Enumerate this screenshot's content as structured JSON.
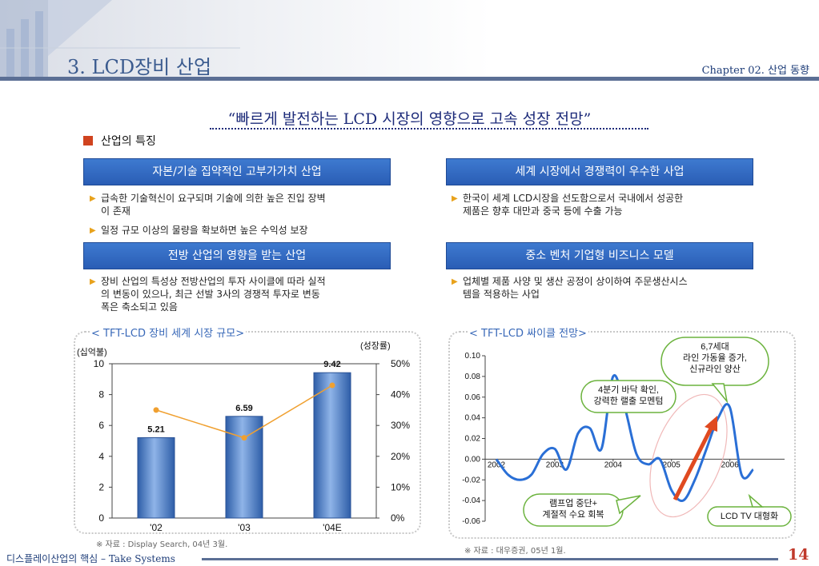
{
  "header": {
    "title": "3. LCD장비 산업",
    "chapter": "Chapter 02. 산업 동향"
  },
  "headline": "“빠르게 발전하는 LCD 시장의 영향으로 고속 성장 전망”",
  "section": {
    "label": "산업의 특징"
  },
  "features": [
    {
      "title": "자본/기술 집약적인 고부가가치 산업",
      "bullets": [
        "급속한 기술혁신이 요구되며 기술에 의한 높은 진입 장벽",
        "이 존재",
        "일정 규모 이상의 물량을 확보하면 높은 수익성 보장"
      ]
    },
    {
      "title": "세계 시장에서 경쟁력이 우수한 사업",
      "bullets": [
        "한국이 세계 LCD시장을 선도함으로서 국내에서 성공한",
        "제품은 향후 대만과 중국 등에 수출 가능"
      ]
    },
    {
      "title": "전방 산업의 영향을 받는 산업",
      "bullets": [
        "장비 산업의 특성상 전방산업의 투자 사이클에 따라 실적",
        "의 변동이 있으나, 최근 선발 3사의 경쟁적 투자로 변동",
        "폭은 축소되고 있음"
      ]
    },
    {
      "title": "중소 벤처 기업형 비즈니스 모델",
      "bullets": [
        "업체별 제품 사양 및 생산 공정이 상이하여 주문생산시스",
        "템을 적용하는 사업"
      ]
    }
  ],
  "chart_data": [
    {
      "type": "bar",
      "title": "< TFT-LCD 장비 세계 시장 규모>",
      "ylabel": "(십억불)",
      "y2label": "(성장률)",
      "categories": [
        "'02",
        "'03",
        "'04E"
      ],
      "series": [
        {
          "values": [
            5.21,
            6.59,
            9.42
          ]
        },
        {
          "type": "line",
          "axis": "right",
          "values": [
            35,
            26,
            43
          ]
        }
      ],
      "ylim": [
        0,
        10
      ],
      "yticks": [
        0,
        2,
        4,
        6,
        8,
        10
      ],
      "y2lim": [
        0,
        50
      ],
      "y2ticks": [
        "0%",
        "10%",
        "20%",
        "30%",
        "40%",
        "50%"
      ],
      "data_labels": [
        "5.21",
        "6.59",
        "9.42"
      ],
      "source": "※ 자료 : Display Search, 04년 3월.",
      "colors": {
        "bar": "#4d7bc2",
        "line": "#f0a030"
      }
    },
    {
      "type": "line",
      "title": "< TFT-LCD 싸이클 전망>",
      "x": [
        2002.0,
        2002.2,
        2002.4,
        2002.6,
        2002.8,
        2003.0,
        2003.2,
        2003.4,
        2003.6,
        2003.8,
        2004.0,
        2004.2,
        2004.4,
        2004.6,
        2004.8,
        2005.0,
        2005.2,
        2005.4,
        2005.6,
        2005.8,
        2006.0,
        2006.2,
        2006.4
      ],
      "y": [
        0.0,
        -0.015,
        -0.02,
        -0.015,
        0.005,
        0.01,
        -0.01,
        0.025,
        0.03,
        0.01,
        0.08,
        0.05,
        0.005,
        -0.005,
        0.0,
        -0.03,
        -0.04,
        -0.02,
        0.01,
        0.04,
        0.05,
        -0.015,
        -0.01
      ],
      "ylim": [
        -0.06,
        0.1
      ],
      "yticks": [
        "0.10",
        "0.08",
        "0.06",
        "0.04",
        "0.02",
        "0.00",
        "-0.02",
        "-0.04",
        "-0.06"
      ],
      "xticks": [
        "2002",
        "2003",
        "2004",
        "2005",
        "2006"
      ],
      "annotations": {
        "a1": "6,7세대\n라인 가동율 증가,\n신규라인 양산",
        "a2": "4분기 바닥 확인,\n강력한 랠출 모멘텀",
        "a3": "램프업 중단+\n계절적 수요 회복",
        "a4": "LCD TV 대형화"
      },
      "source": "※ 자료 : 대우증권, 05년 1월.",
      "colors": {
        "line": "#2a6fd6",
        "arrow": "#e04a20",
        "callout": "#6cb33e"
      }
    }
  ],
  "footer": {
    "text": "디스플레이산업의 핵심 – Take Systems",
    "page": "14"
  }
}
